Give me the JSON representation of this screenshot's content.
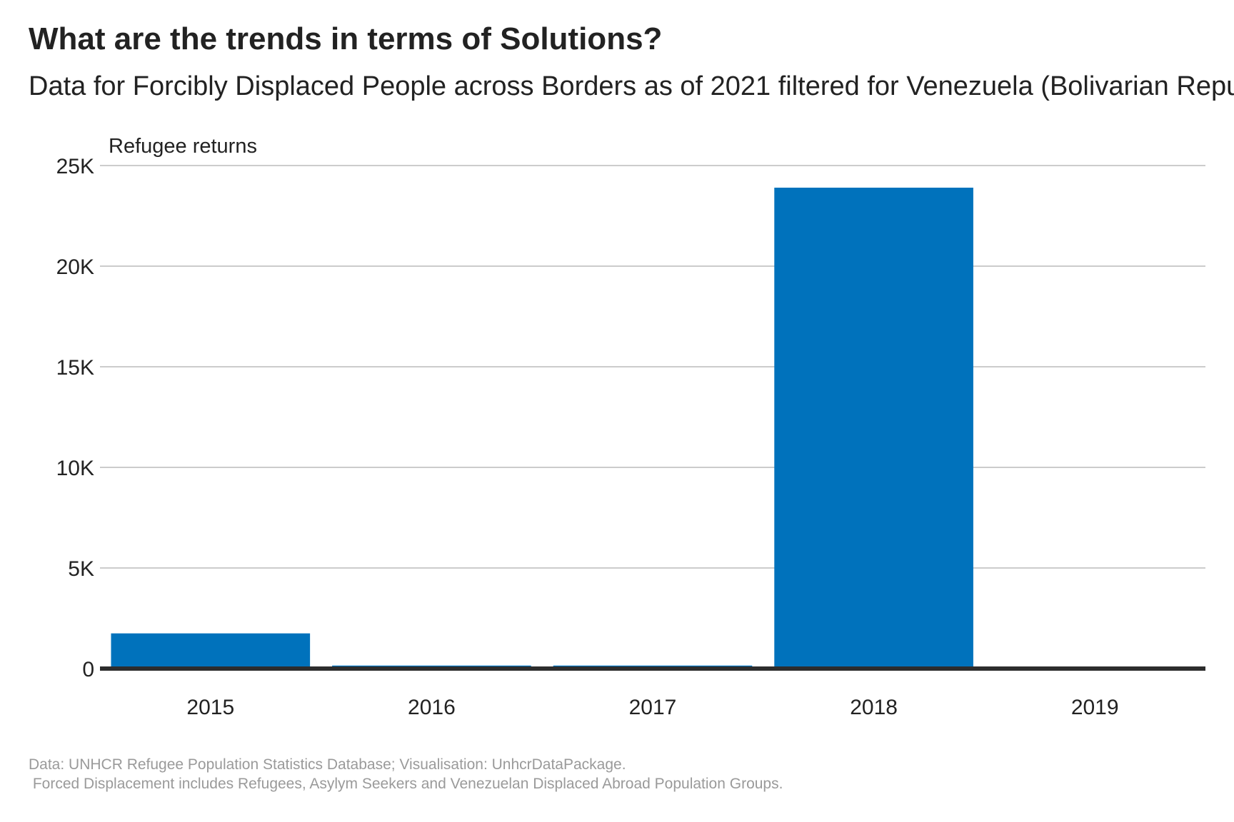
{
  "title": "What are the trends in terms of Solutions?",
  "subtitle": "Data for Forcibly Displaced People across Borders as of 2021 filtered for Venezuela (Bolivarian Republic of)",
  "caption": {
    "line1": "Data: UNHCR Refugee Population Statistics Database; Visualisation: UnhcrDataPackage.",
    "line2": " Forced Displacement includes Refugees, Asylym Seekers and Venezuelan Displaced Abroad Population Groups."
  },
  "colors": {
    "bar": "#0072bc",
    "grid": "#cccccc",
    "baseline": "#2d2d2d",
    "caption": "#9a9a9a"
  },
  "chart_data": {
    "type": "bar",
    "title": "What are the trends in terms of Solutions?",
    "subtitle": "Data for Forcibly Displaced People across Borders as of 2021 filtered for Venezuela (Bolivarian Republic of)",
    "ylabel": "Refugee returns",
    "xlabel": "",
    "categories": [
      "2015",
      "2016",
      "2017",
      "2018",
      "2019"
    ],
    "values": [
      1750,
      150,
      150,
      23900,
      0
    ],
    "ylim": [
      0,
      25000
    ],
    "yticks": [
      0,
      5000,
      10000,
      15000,
      20000,
      25000
    ],
    "ytick_labels": [
      "0",
      "5K",
      "10K",
      "15K",
      "20K",
      "25K"
    ],
    "grid": true,
    "legend": "none"
  }
}
